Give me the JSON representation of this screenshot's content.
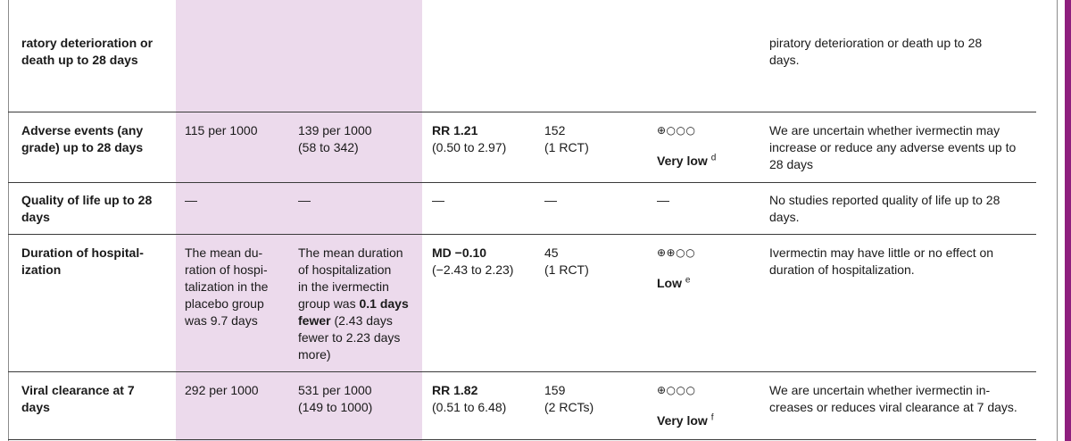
{
  "rows": [
    {
      "outcome": [
        "ratory deterioration or",
        "death up to 28 days"
      ],
      "comment": [
        "piratory deterioration or death up to 28",
        "days."
      ]
    },
    {
      "outcome": [
        "Adverse events (any",
        "grade) up to 28 days"
      ],
      "placebo": [
        "115 per 1000"
      ],
      "ivermectin": [
        "139 per 1000",
        "(58 to 342)"
      ],
      "effect_bold": "RR 1.21",
      "effect_rest": "(0.50 to 2.97)",
      "participants": [
        "152",
        "(1 RCT)"
      ],
      "certainty_symbol": "⊕○○○",
      "certainty_label": "Very low",
      "certainty_footnote": "d",
      "comment": [
        "We are uncertain whether ivermectin may",
        "increase or reduce any adverse events up to",
        "28 days"
      ]
    },
    {
      "outcome": [
        "Quality of life up to 28",
        "days"
      ],
      "placebo": [
        "—"
      ],
      "ivermectin": [
        "—"
      ],
      "effect": "—",
      "participants": [
        "—"
      ],
      "certainty": "—",
      "comment": [
        "No studies reported quality of life up to 28",
        "days."
      ]
    },
    {
      "outcome": [
        "Duration of hospital-",
        "ization"
      ],
      "placebo": [
        "The mean du-",
        "ration of hospi-",
        "talization in the",
        "placebo group",
        "was 9.7 days"
      ],
      "ivermectin_lines": [
        "The mean duration",
        "of hospitalization",
        "in the ivermectin"
      ],
      "ivermectin_pre": "group was ",
      "ivermectin_bold1": "0.1 days",
      "ivermectin_bold2": "fewer",
      "ivermectin_rest": " (2.43 days",
      "ivermectin_tail": [
        "fewer to 2.23 days",
        "more)"
      ],
      "effect_bold": "MD −0.10",
      "effect_rest": "(−2.43 to 2.23)",
      "participants": [
        "45",
        "(1 RCT)"
      ],
      "certainty_symbol": "⊕⊕○○",
      "certainty_label": "Low",
      "certainty_footnote": "e",
      "comment": [
        "Ivermectin may have little or no effect on",
        "duration of hospitalization."
      ]
    },
    {
      "outcome": [
        "Viral clearance at 7",
        "days"
      ],
      "placebo": [
        "292 per 1000"
      ],
      "ivermectin": [
        "531 per 1000",
        "(149 to 1000)"
      ],
      "effect_bold": "RR 1.82",
      "effect_rest": "(0.51 to 6.48)",
      "participants": [
        "159",
        "(2 RCTs)"
      ],
      "certainty_symbol": "⊕○○○",
      "certainty_label": "Very low",
      "certainty_footnote": "f",
      "comment": [
        "We are uncertain whether ivermectin in-",
        "creases or reduces viral clearance at 7 days."
      ]
    }
  ]
}
